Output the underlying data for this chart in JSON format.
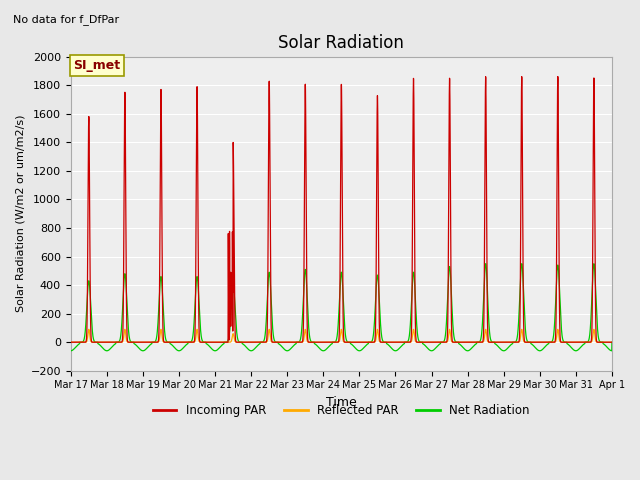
{
  "title": "Solar Radiation",
  "subtitle": "No data for f_DfPar",
  "ylabel": "Solar Radiation (W/m2 or um/m2/s)",
  "xlabel": "Time",
  "ylim": [
    -200,
    2000
  ],
  "yticks": [
    -200,
    0,
    200,
    400,
    600,
    800,
    1000,
    1200,
    1400,
    1600,
    1800,
    2000
  ],
  "xtick_labels": [
    "Mar 17",
    "Mar 18",
    "Mar 19",
    "Mar 20",
    "Mar 21",
    "Mar 22",
    "Mar 23",
    "Mar 24",
    "Mar 25",
    "Mar 26",
    "Mar 27",
    "Mar 28",
    "Mar 29",
    "Mar 30",
    "Mar 31",
    "Apr 1"
  ],
  "legend_labels": [
    "Incoming PAR",
    "Reflected PAR",
    "Net Radiation"
  ],
  "legend_colors": [
    "#cc0000",
    "#ffaa00",
    "#00cc00"
  ],
  "line_colors": [
    "#cc0000",
    "#ffaa00",
    "#00cc00"
  ],
  "bg_color": "#e8e8e8",
  "plot_bg": "#eeeeee",
  "grid_color": "#ffffff",
  "annotation_box_text": "SI_met",
  "annotation_box_color": "#ffffcc",
  "annotation_box_border": "#999900",
  "num_days": 15,
  "peak_incoming": [
    1580,
    1750,
    1770,
    1790,
    1400,
    1830,
    1810,
    1810,
    1730,
    1850,
    1850,
    1860,
    1860,
    1860,
    1850
  ],
  "peak_reflected": [
    90,
    90,
    90,
    90,
    60,
    90,
    90,
    90,
    90,
    90,
    90,
    90,
    90,
    90,
    90
  ],
  "peak_net": [
    430,
    480,
    460,
    460,
    400,
    490,
    510,
    490,
    470,
    490,
    530,
    550,
    550,
    540,
    550
  ],
  "night_net": -60
}
